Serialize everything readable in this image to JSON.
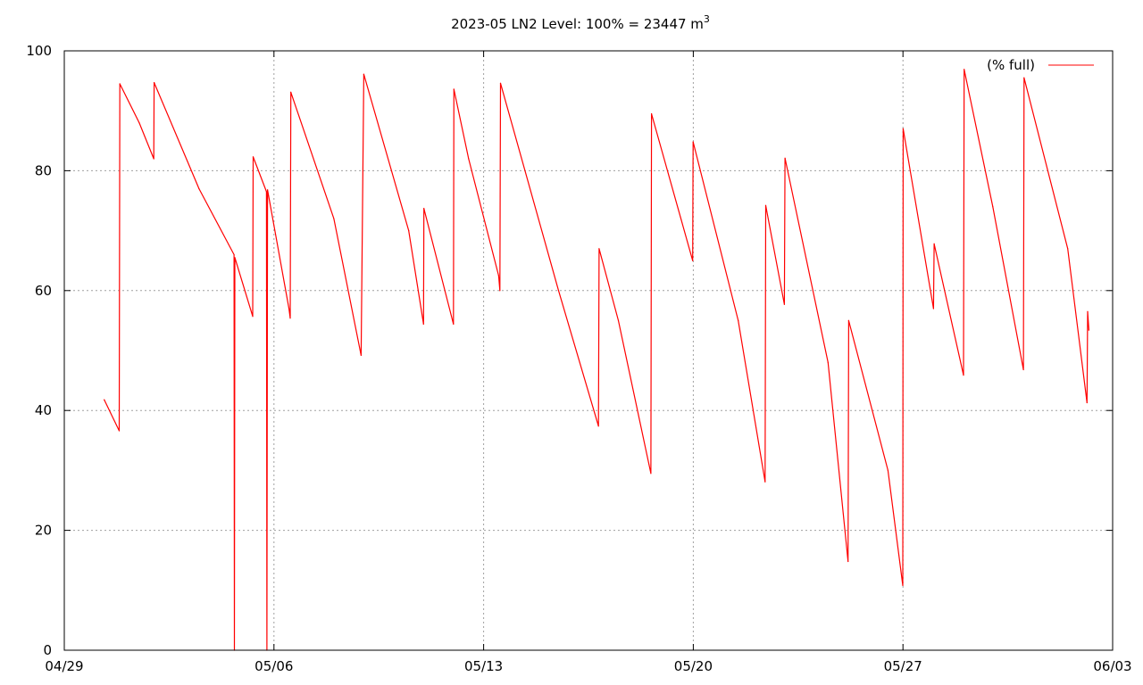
{
  "chart_data": {
    "type": "line",
    "title_text": "2023-05 LN2 Level: 100% = 23447 m",
    "title_superscript": "3",
    "xlabel": "",
    "ylabel": "",
    "x_range": [
      "2023-04-29",
      "2023-06-03"
    ],
    "ylim": [
      0,
      100
    ],
    "y_ticks": [
      0,
      20,
      40,
      60,
      80,
      100
    ],
    "x_ticks": [
      {
        "date": "2023-04-29",
        "label": "04/29"
      },
      {
        "date": "2023-05-06",
        "label": "05/06"
      },
      {
        "date": "2023-05-13",
        "label": "05/13"
      },
      {
        "date": "2023-05-20",
        "label": "05/20"
      },
      {
        "date": "2023-05-27",
        "label": "05/27"
      },
      {
        "date": "2023-06-03",
        "label": "06/03"
      }
    ],
    "grid": true,
    "legend_position": "top-right",
    "series": [
      {
        "name": "(% full)",
        "color": "#ff0000",
        "points": [
          [
            "2023-04-30 08:00",
            41.8
          ],
          [
            "2023-04-30 20:00",
            36.6
          ],
          [
            "2023-04-30 20:30",
            94.5
          ],
          [
            "2023-05-01 12:00",
            88.0
          ],
          [
            "2023-05-01 23:40",
            82.0
          ],
          [
            "2023-05-02 00:00",
            94.7
          ],
          [
            "2023-05-03 12:00",
            77.0
          ],
          [
            "2023-05-04 16:00",
            66.0
          ],
          [
            "2023-05-04 16:20",
            0.0
          ],
          [
            "2023-05-04 16:40",
            65.5
          ],
          [
            "2023-05-05 07:00",
            55.7
          ],
          [
            "2023-05-05 07:20",
            82.3
          ],
          [
            "2023-05-05 18:00",
            76.5
          ],
          [
            "2023-05-05 18:20",
            0.0
          ],
          [
            "2023-05-05 18:50",
            76.8
          ],
          [
            "2023-05-06 12:00",
            57.0
          ],
          [
            "2023-05-06 13:00",
            55.4
          ],
          [
            "2023-05-06 13:30",
            93.1
          ],
          [
            "2023-05-08 00:00",
            72.0
          ],
          [
            "2023-05-08 21:50",
            49.2
          ],
          [
            "2023-05-09 00:00",
            96.1
          ],
          [
            "2023-05-10 12:00",
            70.0
          ],
          [
            "2023-05-10 23:50",
            54.4
          ],
          [
            "2023-05-11 00:10",
            73.7
          ],
          [
            "2023-05-11 23:50",
            54.4
          ],
          [
            "2023-05-12 00:10",
            93.6
          ],
          [
            "2023-05-12 12:00",
            82.0
          ],
          [
            "2023-05-13 12:00",
            62.5
          ],
          [
            "2023-05-13 13:00",
            60.0
          ],
          [
            "2023-05-13 13:30",
            94.6
          ],
          [
            "2023-05-15 12:00",
            60.0
          ],
          [
            "2023-05-16 20:00",
            37.4
          ],
          [
            "2023-05-16 20:30",
            67.0
          ],
          [
            "2023-05-17 12:00",
            55.0
          ],
          [
            "2023-05-18 14:00",
            29.5
          ],
          [
            "2023-05-18 14:30",
            89.5
          ],
          [
            "2023-05-19 23:30",
            65.0
          ],
          [
            "2023-05-19 23:50",
            84.8
          ],
          [
            "2023-05-21 12:00",
            55.0
          ],
          [
            "2023-05-22 09:30",
            28.1
          ],
          [
            "2023-05-22 10:00",
            74.2
          ],
          [
            "2023-05-23 01:00",
            57.7
          ],
          [
            "2023-05-23 01:30",
            82.1
          ],
          [
            "2023-05-24 12:00",
            48.0
          ],
          [
            "2023-05-25 04:00",
            14.8
          ],
          [
            "2023-05-25 04:30",
            55.0
          ],
          [
            "2023-05-26 12:00",
            30.0
          ],
          [
            "2023-05-26 23:50",
            10.8
          ],
          [
            "2023-05-27 00:10",
            87.0
          ],
          [
            "2023-05-28 00:30",
            57.0
          ],
          [
            "2023-05-28 01:00",
            67.8
          ],
          [
            "2023-05-29 00:30",
            45.9
          ],
          [
            "2023-05-29 01:00",
            96.9
          ],
          [
            "2023-05-30 00:00",
            74.0
          ],
          [
            "2023-05-31 00:30",
            46.8
          ],
          [
            "2023-05-31 01:00",
            95.5
          ],
          [
            "2023-06-01 12:00",
            67.0
          ],
          [
            "2023-06-02 03:30",
            41.3
          ],
          [
            "2023-06-02 04:00",
            56.5
          ],
          [
            "2023-06-02 05:00",
            53.4
          ]
        ]
      }
    ]
  }
}
